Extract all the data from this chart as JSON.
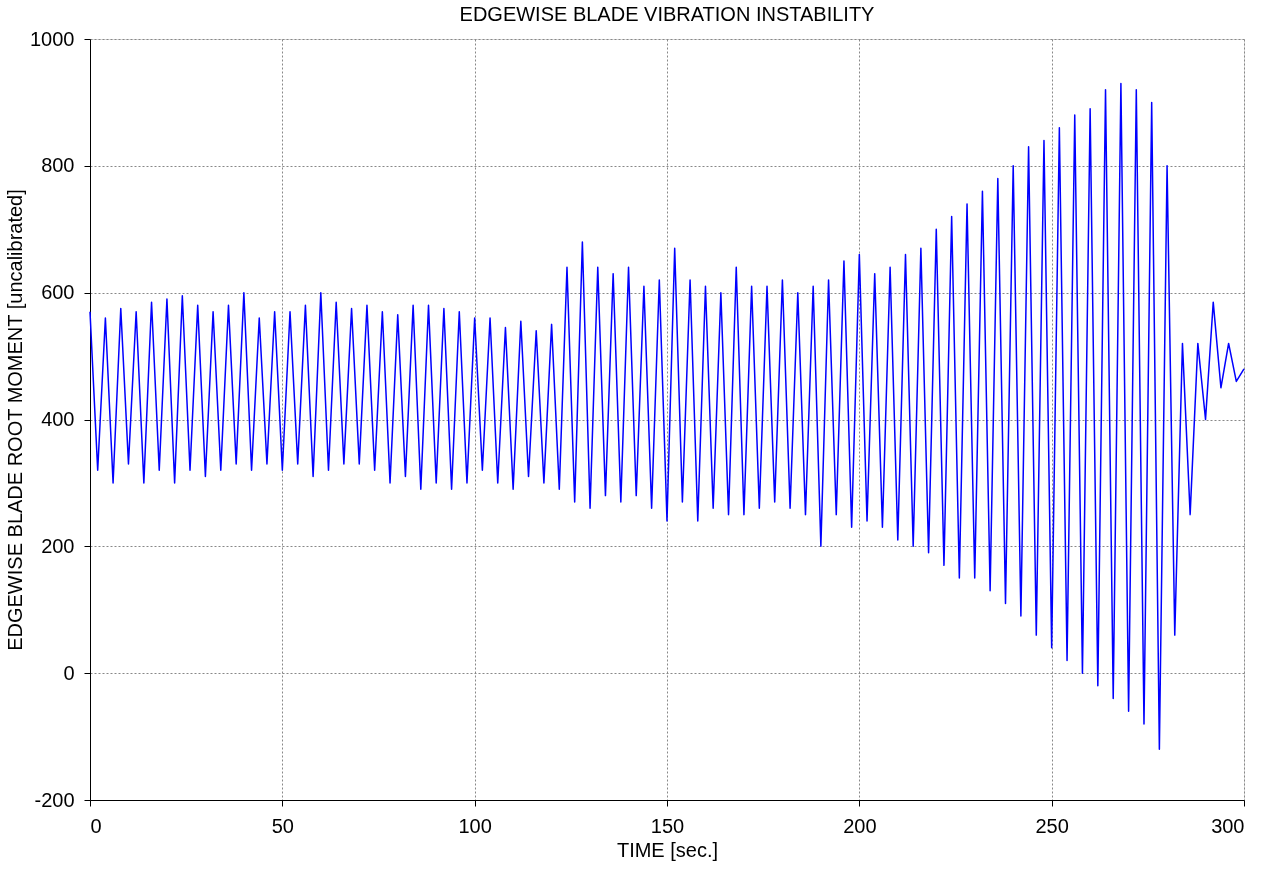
{
  "chart_data": {
    "type": "line",
    "title": "EDGEWISE BLADE VIBRATION INSTABILITY",
    "xlabel": "TIME [sec.]",
    "ylabel": "EDGEWISE BLADE ROOT MOMENT [uncalibrated]",
    "xlim": [
      0,
      300
    ],
    "xticks": [
      0,
      50,
      100,
      150,
      200,
      250,
      300
    ],
    "ylim": [
      -200,
      1000
    ],
    "yticks": [
      -200,
      0,
      200,
      400,
      600,
      800,
      1000
    ],
    "grid": true,
    "line_style": "solid",
    "x": [
      0,
      2,
      4,
      6,
      8,
      10,
      12,
      14,
      16,
      18,
      20,
      22,
      24,
      26,
      28,
      30,
      32,
      34,
      36,
      38,
      40,
      42,
      44,
      46,
      48,
      50,
      52,
      54,
      56,
      58,
      60,
      62,
      64,
      66,
      68,
      70,
      72,
      74,
      76,
      78,
      80,
      82,
      84,
      86,
      88,
      90,
      92,
      94,
      96,
      98,
      100,
      102,
      104,
      106,
      108,
      110,
      112,
      114,
      116,
      118,
      120,
      122,
      124,
      126,
      128,
      130,
      132,
      134,
      136,
      138,
      140,
      142,
      144,
      146,
      148,
      150,
      152,
      154,
      156,
      158,
      160,
      162,
      164,
      166,
      168,
      170,
      172,
      174,
      176,
      178,
      180,
      182,
      184,
      186,
      188,
      190,
      192,
      194,
      196,
      198,
      200,
      202,
      204,
      206,
      208,
      210,
      212,
      214,
      216,
      218,
      220,
      222,
      224,
      226,
      228,
      230,
      232,
      234,
      236,
      238,
      240,
      242,
      244,
      246,
      248,
      250,
      252,
      254,
      256,
      258,
      260,
      262,
      264,
      266,
      268,
      270,
      272,
      274,
      276,
      278,
      280,
      282,
      284,
      286,
      288,
      290,
      292,
      294,
      296,
      298,
      300
    ],
    "series": [
      {
        "color": "#0000ff",
        "values": [
          570,
          320,
          560,
          300,
          575,
          330,
          570,
          300,
          585,
          320,
          590,
          300,
          595,
          320,
          580,
          310,
          570,
          320,
          580,
          330,
          600,
          320,
          560,
          330,
          570,
          320,
          570,
          330,
          580,
          310,
          600,
          320,
          585,
          330,
          575,
          330,
          580,
          320,
          570,
          300,
          565,
          310,
          580,
          290,
          580,
          300,
          575,
          290,
          570,
          300,
          560,
          320,
          560,
          300,
          545,
          290,
          555,
          310,
          540,
          300,
          550,
          290,
          640,
          270,
          680,
          260,
          640,
          280,
          630,
          270,
          640,
          280,
          610,
          260,
          620,
          240,
          670,
          270,
          620,
          240,
          610,
          260,
          600,
          250,
          640,
          250,
          610,
          260,
          610,
          270,
          620,
          260,
          600,
          250,
          610,
          200,
          620,
          250,
          650,
          230,
          660,
          240,
          630,
          230,
          640,
          210,
          660,
          200,
          670,
          190,
          700,
          170,
          720,
          150,
          740,
          150,
          760,
          130,
          780,
          110,
          800,
          90,
          830,
          60,
          840,
          40,
          860,
          20,
          880,
          0,
          890,
          -20,
          920,
          -40,
          930,
          -60,
          920,
          -80,
          900,
          -120,
          800,
          60,
          520,
          250,
          520,
          400,
          585,
          450,
          520,
          460,
          480
        ]
      }
    ]
  }
}
